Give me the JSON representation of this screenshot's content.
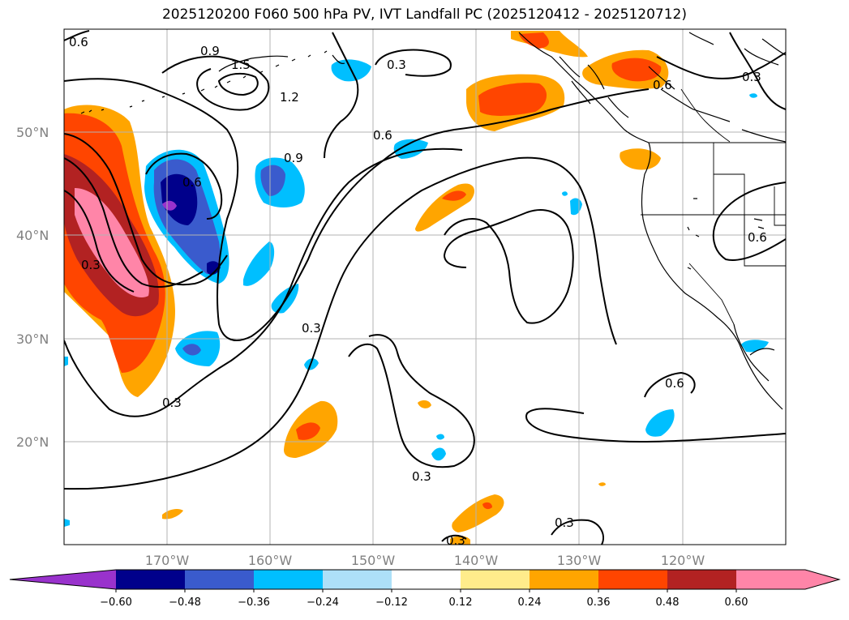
{
  "title": "2025120200 F060 500 hPa PV, IVT Landfall PC (2025120412 - 2025120712)",
  "map": {
    "lon_range": [
      -180,
      -110
    ],
    "lat_range": [
      10,
      60
    ],
    "lon_labels": [
      "170°W",
      "160°W",
      "150°W",
      "140°W",
      "130°W",
      "120°W"
    ],
    "lat_labels": [
      "50°N",
      "40°N",
      "30°N",
      "20°N"
    ],
    "contour_labels": [
      "0.6",
      "0.9",
      "1.5",
      "1.2",
      "0.3",
      "0.9",
      "0.6",
      "0.6",
      "0.6",
      "0.3",
      "0.3",
      "0.3",
      "0.6",
      "0.3",
      "0.6",
      "0.3",
      "0.3",
      "0.3"
    ]
  },
  "colorbar": {
    "ticks": [
      "−0.60",
      "−0.48",
      "−0.36",
      "−0.24",
      "−0.12",
      "0.12",
      "0.24",
      "0.36",
      "0.48",
      "0.60"
    ],
    "colors": {
      "min_arrow": "#9932CC",
      "bins": [
        "#00008B",
        "#3A5BCD",
        "#00BFFF",
        "#ADE0F8",
        "#FFFFFF",
        "#FFEC8B",
        "#FFA500",
        "#FF4500",
        "#B22222",
        "#FF85A8"
      ],
      "max_arrow": "#FF85A8"
    }
  }
}
